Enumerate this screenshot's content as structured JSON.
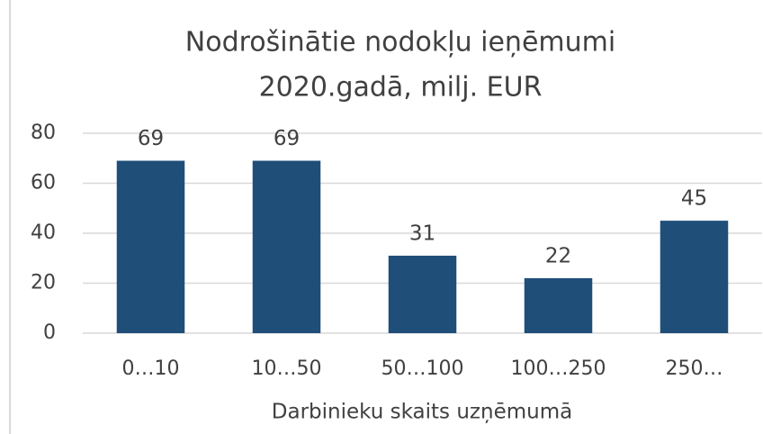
{
  "chart_data": {
    "type": "bar",
    "title": [
      "Nodrošinātie nodokļu ieņēmumi",
      "2020.gadā, milj. EUR"
    ],
    "x_label": "Darbinieku skaits uzņēmumā",
    "categories": [
      "0…10",
      "10…50",
      "50…100",
      "100…250",
      "250…"
    ],
    "values": [
      69,
      69,
      31,
      22,
      45
    ],
    "color": "#1f4e79",
    "ylim": [
      0,
      80
    ],
    "yticks": [
      0,
      20,
      40,
      60,
      80
    ],
    "grid": true
  }
}
